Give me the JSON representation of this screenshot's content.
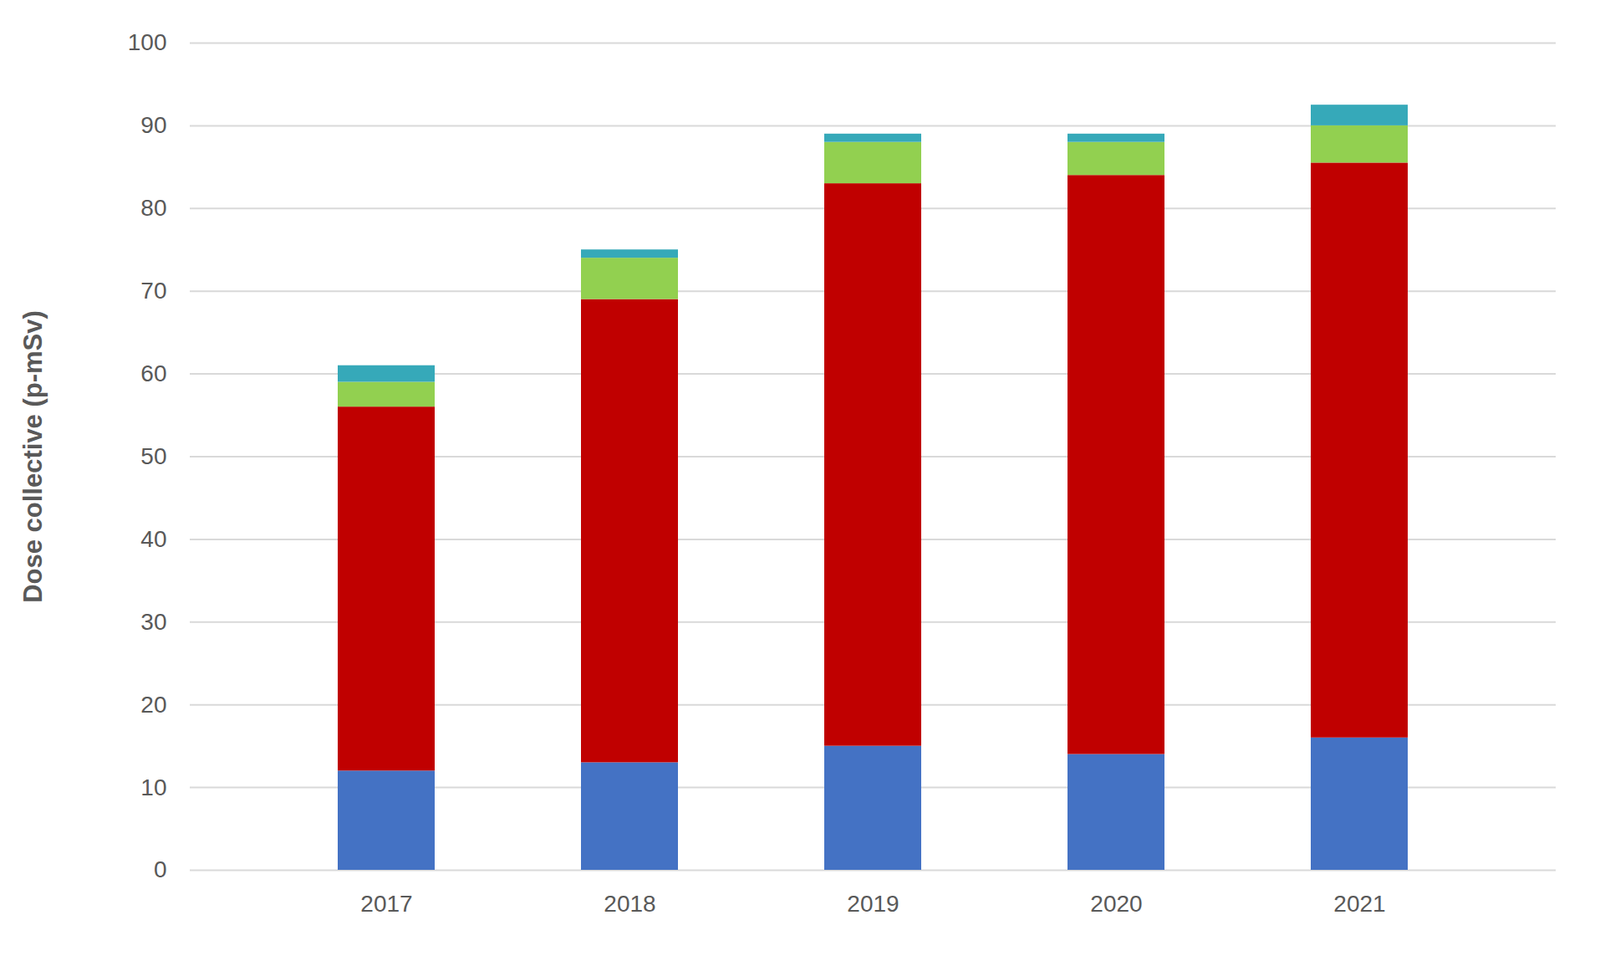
{
  "chart_data": {
    "type": "bar",
    "stacked": true,
    "y_label": "Dose collective (p-mSv)",
    "categories": [
      "2017",
      "2018",
      "2019",
      "2020",
      "2021"
    ],
    "series": [
      {
        "color": "#4472c4",
        "values": [
          12,
          13,
          15,
          14,
          16
        ]
      },
      {
        "color": "#c00000",
        "values": [
          44,
          56,
          68,
          70,
          69.5
        ]
      },
      {
        "color": "#92d050",
        "values": [
          3,
          5,
          5,
          4,
          4.5
        ]
      },
      {
        "color": "#36a9b9",
        "values": [
          2,
          1,
          1,
          1,
          2.5
        ]
      }
    ],
    "ylim": [
      0,
      100
    ],
    "yticks": [
      0,
      10,
      20,
      30,
      40,
      50,
      60,
      70,
      80,
      90,
      100
    ],
    "grid": true
  }
}
